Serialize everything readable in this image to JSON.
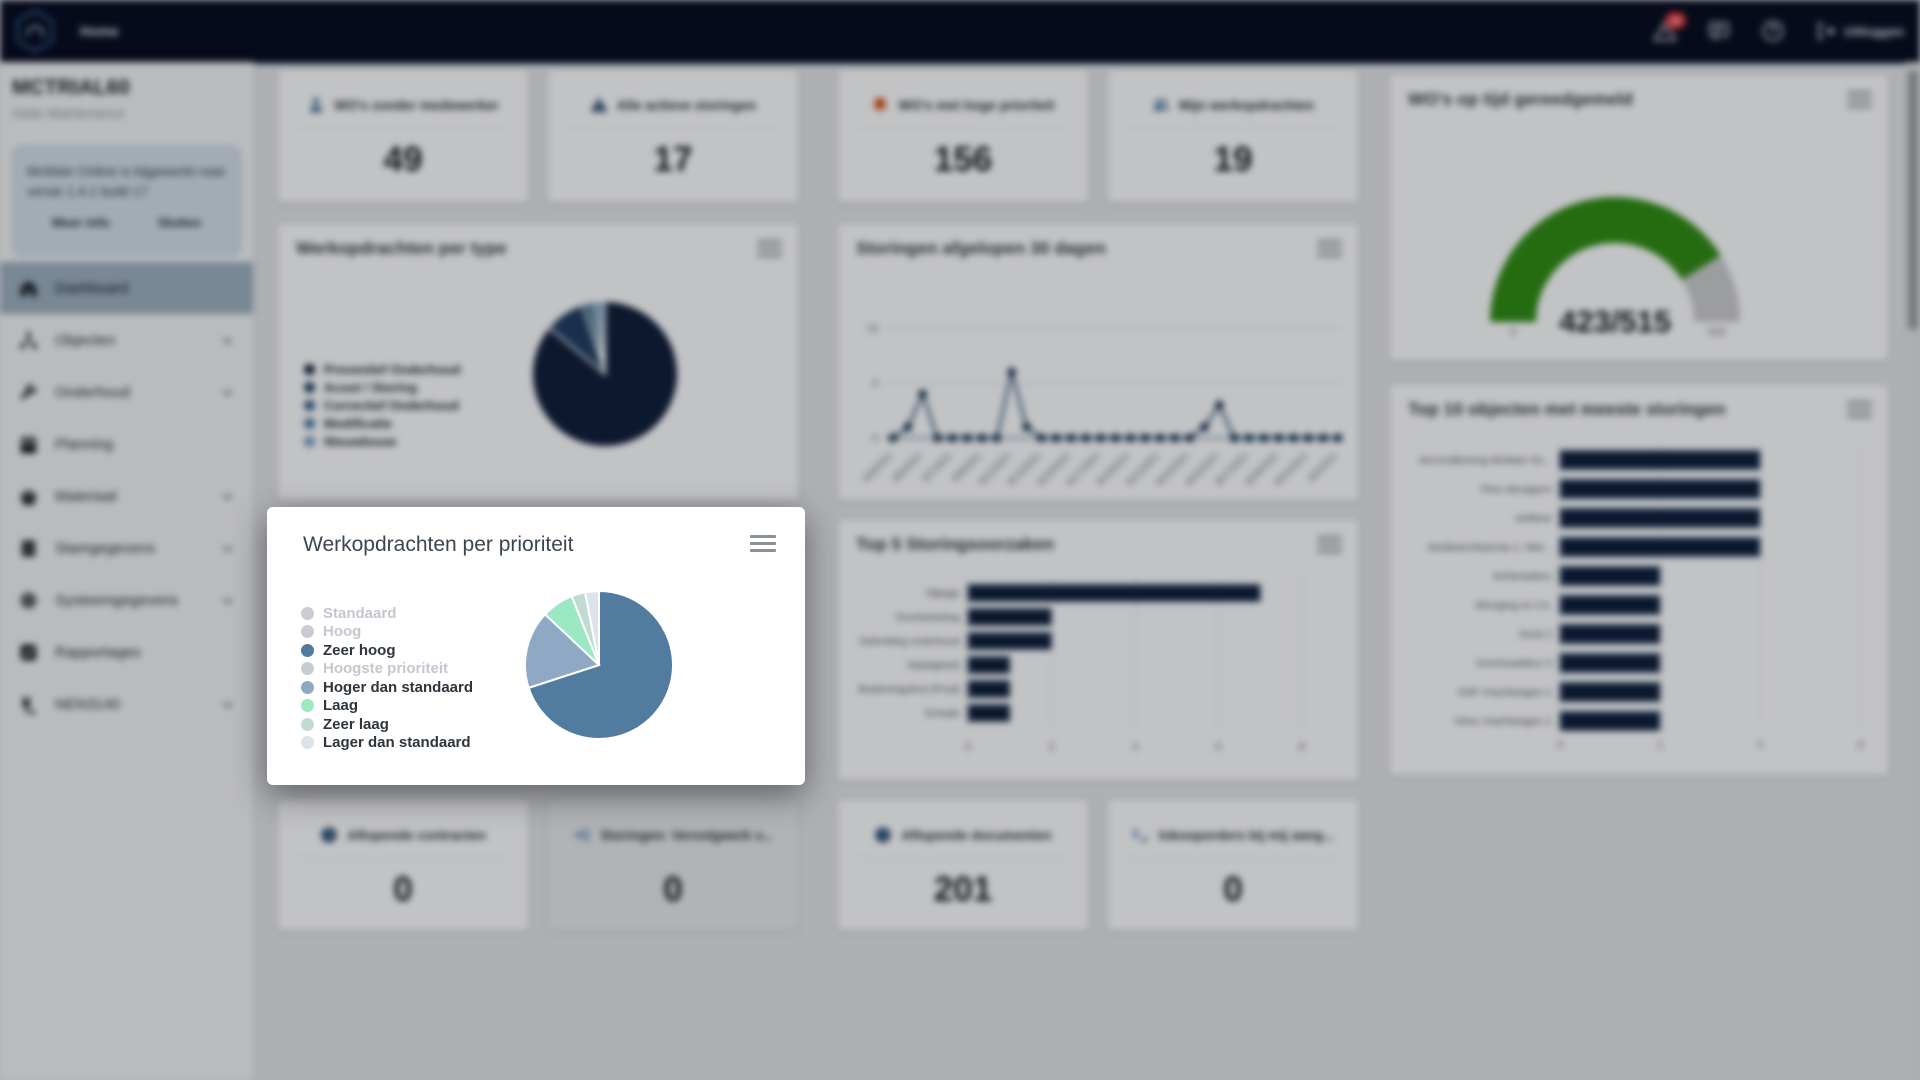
{
  "topbar": {
    "home_label": "Home",
    "badge_count": "29",
    "logout_label": "Uitloggen"
  },
  "sidebar": {
    "account": "MCTRIAL60",
    "subtitle": "Glide Maintenance",
    "notice": {
      "text": "McMain Online is bijgewerkt naar versie 1.4.1 build 17",
      "more_label": "Meer info",
      "close_label": "Sluiten"
    },
    "items": [
      {
        "label": "Dashboard",
        "icon": "home-icon",
        "active": true,
        "chevron": false
      },
      {
        "label": "Objecten",
        "icon": "sitemap-icon",
        "active": false,
        "chevron": true
      },
      {
        "label": "Onderhoud",
        "icon": "wrench-icon",
        "active": false,
        "chevron": true
      },
      {
        "label": "Planning",
        "icon": "calendar-icon",
        "active": false,
        "chevron": false
      },
      {
        "label": "Materiaal",
        "icon": "basket-icon",
        "active": false,
        "chevron": true
      },
      {
        "label": "Stamgegevens",
        "icon": "database-icon",
        "active": false,
        "chevron": true
      },
      {
        "label": "Systeemgegevens",
        "icon": "gear-icon",
        "active": false,
        "chevron": true
      },
      {
        "label": "Rapportages",
        "icon": "report-icon",
        "active": false,
        "chevron": false
      },
      {
        "label": "NEN3140",
        "icon": "plug-icon",
        "active": false,
        "chevron": true
      }
    ]
  },
  "kpis_top": [
    {
      "label": "WO's zonder medewerker",
      "value": "49",
      "icon": "person-icon",
      "icon_color": "#1c4e79"
    },
    {
      "label": "Alle actieve storingen",
      "value": "17",
      "icon": "alert-triangle-icon",
      "icon_color": "#16365c"
    },
    {
      "label": "WO's met hoge prioriteit",
      "value": "156",
      "icon": "bell-icon",
      "icon_color": "#d9480f"
    },
    {
      "label": "Mijn werkopdrachten",
      "value": "19",
      "icon": "people-icon",
      "icon_color": "#16517e"
    }
  ],
  "kpis_bottom": [
    {
      "label": "Aflopende contracten",
      "value": "0",
      "icon": "clock-icon",
      "icon_color": "#123c63",
      "highlighted": false
    },
    {
      "label": "Storingen: Vervolgwerk v...",
      "value": "0",
      "icon": "followup-icon",
      "icon_color": "#2563a8",
      "highlighted": true
    },
    {
      "label": "Aflopende documenten",
      "value": "201",
      "icon": "clock-icon",
      "icon_color": "#123c63",
      "highlighted": false
    },
    {
      "label": "Inkooporders bij mij aang...",
      "value": "0",
      "icon": "euro-check-icon",
      "icon_color": "#2563a8",
      "highlighted": false
    }
  ],
  "chart_data": [
    {
      "id": "type_pie",
      "type": "pie",
      "title": "Werkopdrachten per type",
      "legend_position": "left",
      "slices": [
        {
          "label": "Preventief Onderhoud",
          "value": 86,
          "color": "#0d1b36"
        },
        {
          "label": "Acuut / Storing",
          "value": 9,
          "color": "#1d3a5f"
        },
        {
          "label": "Correctief Onderhoud",
          "value": 2,
          "color": "#2f5a7f"
        },
        {
          "label": "Modificatie",
          "value": 1.5,
          "color": "#47749c"
        },
        {
          "label": "Nieuwbouw",
          "value": 1.5,
          "color": "#7199bd"
        }
      ]
    },
    {
      "id": "storingen_line",
      "type": "line",
      "title": "Storingen afgelopen 30 dagen",
      "ylim": [
        0,
        10
      ],
      "yticks": [
        0,
        5,
        10
      ],
      "grid": true,
      "x_labels": [
        "8/3/2021",
        "8/5/2021",
        "8/7/2021",
        "8/9/2021",
        "8/11/2021",
        "8/13/2021",
        "8/15/2021",
        "8/17/2021",
        "8/19/2021",
        "8/21/2021",
        "8/23/2021",
        "8/25/2021",
        "8/27/2021",
        "8/29/2021",
        "8/31/2021",
        "9/2/2021"
      ],
      "values": [
        0,
        1,
        4,
        0,
        0,
        0,
        0,
        0,
        6,
        1,
        0,
        0,
        0,
        0,
        0,
        0,
        0,
        0,
        0,
        0,
        0,
        1,
        3,
        0,
        0,
        0,
        0,
        0,
        0,
        0,
        0
      ],
      "line_color": "#33597a",
      "point_color": "#0d2540"
    },
    {
      "id": "gauge",
      "type": "gauge",
      "title": "WO's op tijd gereedgemeld",
      "value": 423,
      "max": 515,
      "min_label": "0",
      "max_label": "515",
      "center_label": "423/515",
      "color": "#2e8b0f",
      "track_color": "#cccccc"
    },
    {
      "id": "top10_bar",
      "type": "bar",
      "orientation": "horizontal",
      "title": "Top 10 objecten met meeste storingen",
      "categories": [
        "Airconditioning McMain So...",
        "Flexi afzuigarm",
        "eefilane",
        "Aardwarmtepomp 1, War...",
        "Achterladers",
        "Afzuiging en Co.",
        "Dock 2",
        "Overheaddeur 3",
        "DAF Vrachtwagen 1",
        "Volvo Vrachtwagen 1"
      ],
      "values": [
        2,
        2,
        2,
        2,
        1,
        1,
        1,
        1,
        1,
        1
      ],
      "xticks": [
        0,
        1,
        2,
        3
      ],
      "xlim": [
        0,
        3
      ],
      "bar_color": "#0d1b36"
    },
    {
      "id": "prio_pie",
      "type": "pie",
      "title": "Werkopdrachten per prioriteit",
      "legend": [
        {
          "label": "Standaard",
          "color": "#c9cdd2",
          "disabled": true,
          "value": 0
        },
        {
          "label": "Hoog",
          "color": "#c9cdd2",
          "disabled": true,
          "value": 0
        },
        {
          "label": "Zeer hoog",
          "color": "#527ba0",
          "disabled": false,
          "value": 70
        },
        {
          "label": "Hoogste prioriteit",
          "color": "#c9cdd2",
          "disabled": true,
          "value": 0
        },
        {
          "label": "Hoger dan standaard",
          "color": "#8fa9c4",
          "disabled": false,
          "value": 17
        },
        {
          "label": "Laag",
          "color": "#9ce8c2",
          "disabled": false,
          "value": 7
        },
        {
          "label": "Zeer laag",
          "color": "#c2dbd2",
          "disabled": false,
          "value": 3
        },
        {
          "label": "Lager dan standaard",
          "color": "#dce4eb",
          "disabled": false,
          "value": 3
        }
      ]
    },
    {
      "id": "top5_bar",
      "type": "bar",
      "orientation": "horizontal",
      "title": "Top 5 Storingsoorzaken",
      "categories": [
        "Slijtage",
        "Overbelasting",
        "Gebrekkig onderhoud",
        "Nalatigheid",
        "Bedieningsfout (Prod)",
        "Schade"
      ],
      "values": [
        7,
        2,
        2,
        1,
        1,
        1
      ],
      "xticks": [
        0,
        2,
        4,
        6,
        8
      ],
      "xlim": [
        0,
        8
      ],
      "bar_color": "#0d1b36"
    }
  ]
}
